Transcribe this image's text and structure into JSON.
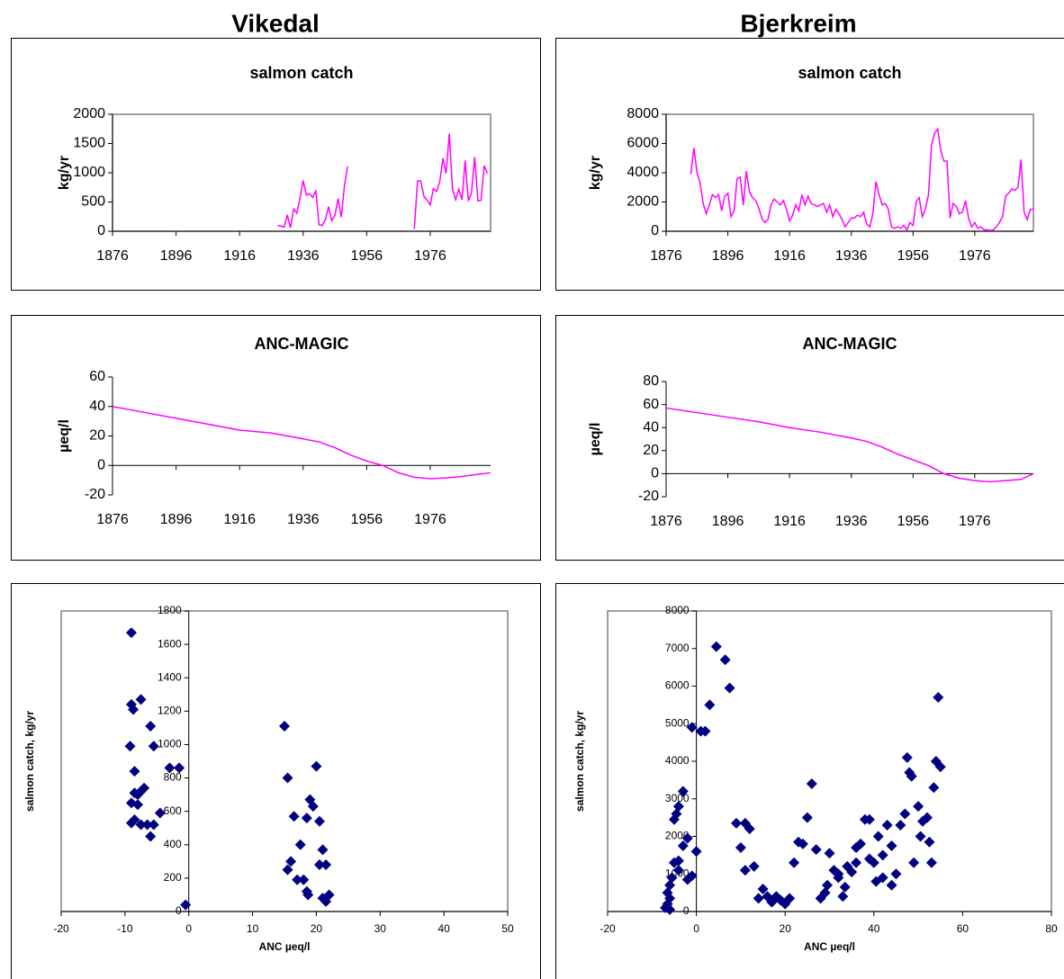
{
  "headers": [
    "Vikedal",
    "Bjerkreim"
  ],
  "chart_data": [
    {
      "type": "line",
      "title": "salmon catch",
      "ylabel": "kg/yr",
      "color": "#ff00ff",
      "x": [
        1928,
        1929,
        1930,
        1931,
        1932,
        1933,
        1934,
        1935,
        1936,
        1937,
        1938,
        1939,
        1940,
        1941,
        1942,
        1943,
        1944,
        1945,
        1946,
        1947,
        1948,
        1949,
        1950,
        1951,
        1952,
        1953,
        1954,
        1955,
        1956,
        1957,
        1958,
        1959,
        1960,
        1961,
        1962,
        1963,
        1964,
        1965,
        1966,
        1967,
        1968,
        1969,
        1970,
        1971,
        1972,
        1973,
        1974,
        1975,
        1976,
        1977,
        1978,
        1979,
        1980,
        1981,
        1982,
        1983,
        1984,
        1985,
        1986,
        1987,
        1988,
        1989,
        1990,
        1991,
        1992,
        1993,
        1994
      ],
      "values": [
        100,
        90,
        70,
        280,
        60,
        380,
        310,
        560,
        870,
        620,
        640,
        580,
        690,
        110,
        100,
        200,
        420,
        180,
        270,
        560,
        240,
        780,
        1110,
        null,
        null,
        null,
        null,
        null,
        null,
        null,
        null,
        null,
        null,
        null,
        null,
        null,
        null,
        null,
        null,
        null,
        null,
        null,
        null,
        40,
        860,
        860,
        600,
        530,
        450,
        730,
        680,
        850,
        1250,
        990,
        1670,
        720,
        540,
        720,
        540,
        1210,
        520,
        660,
        1270,
        520,
        530,
        1120,
        990
      ],
      "xlim": [
        1876,
        1995
      ],
      "xticks": [
        1876,
        1896,
        1916,
        1936,
        1956,
        1976
      ],
      "ylim": [
        0,
        2000
      ],
      "yticks": [
        0,
        500,
        1000,
        1500,
        2000
      ]
    },
    {
      "type": "line",
      "title": "salmon catch",
      "ylabel": "kg/yr",
      "color": "#ff00ff",
      "x": [
        1884,
        1885,
        1886,
        1887,
        1888,
        1889,
        1890,
        1891,
        1892,
        1893,
        1894,
        1895,
        1896,
        1897,
        1898,
        1899,
        1900,
        1901,
        1902,
        1903,
        1904,
        1905,
        1906,
        1907,
        1908,
        1909,
        1910,
        1911,
        1912,
        1913,
        1914,
        1915,
        1916,
        1917,
        1918,
        1919,
        1920,
        1921,
        1922,
        1923,
        1924,
        1925,
        1926,
        1927,
        1928,
        1929,
        1930,
        1931,
        1932,
        1933,
        1934,
        1935,
        1936,
        1937,
        1938,
        1939,
        1940,
        1941,
        1942,
        1943,
        1944,
        1945,
        1946,
        1947,
        1948,
        1949,
        1950,
        1951,
        1952,
        1953,
        1954,
        1955,
        1956,
        1957,
        1958,
        1959,
        1960,
        1961,
        1962,
        1963,
        1964,
        1965,
        1966,
        1967,
        1968,
        1969,
        1970,
        1971,
        1972,
        1973,
        1974,
        1975,
        1976,
        1977,
        1978,
        1979,
        1980,
        1981,
        1982,
        1983,
        1984,
        1985,
        1986,
        1987,
        1988,
        1989,
        1990,
        1991,
        1992,
        1993,
        1994,
        1995
      ],
      "values": [
        3900,
        5700,
        4000,
        3300,
        1900,
        1200,
        1800,
        2500,
        2300,
        2500,
        1400,
        2400,
        2600,
        1000,
        1400,
        3600,
        3700,
        1800,
        4100,
        2700,
        2300,
        2100,
        1600,
        900,
        600,
        800,
        1800,
        2200,
        2000,
        1800,
        2100,
        1500,
        700,
        1100,
        1800,
        1400,
        2500,
        1800,
        2400,
        1900,
        1800,
        1700,
        1800,
        1900,
        1300,
        1800,
        1000,
        1500,
        1200,
        800,
        300,
        600,
        900,
        900,
        1100,
        1000,
        1300,
        500,
        300,
        1200,
        3400,
        2500,
        1800,
        1900,
        1500,
        300,
        200,
        300,
        200,
        400,
        100,
        600,
        400,
        2000,
        2300,
        1000,
        1500,
        2500,
        5900,
        6700,
        7000,
        5500,
        4800,
        4800,
        900,
        1900,
        1700,
        1200,
        1300,
        2100,
        900,
        300,
        600,
        200,
        300,
        100,
        100,
        50,
        100,
        300,
        600,
        1000,
        2400,
        2600,
        2900,
        2800,
        3000,
        4900,
        1300,
        800,
        1500,
        1500
      ],
      "xlim": [
        1876,
        1995
      ],
      "xticks": [
        1876,
        1896,
        1916,
        1936,
        1956,
        1976
      ],
      "ylim": [
        0,
        8000
      ],
      "yticks": [
        0,
        2000,
        4000,
        6000,
        8000
      ]
    },
    {
      "type": "line",
      "title": "ANC-MAGIC",
      "ylabel": "µeq/l",
      "color": "#ff00ff",
      "x": [
        1876,
        1886,
        1896,
        1906,
        1916,
        1926,
        1936,
        1941,
        1946,
        1951,
        1956,
        1961,
        1966,
        1971,
        1976,
        1981,
        1986,
        1991,
        1995
      ],
      "values": [
        40,
        36,
        32,
        28,
        24,
        22,
        18,
        16,
        12,
        7,
        3,
        0,
        -5,
        -8,
        -9,
        -8.5,
        -7.5,
        -6,
        -5
      ],
      "xlim": [
        1876,
        1995
      ],
      "xticks": [
        1876,
        1896,
        1916,
        1936,
        1956,
        1976
      ],
      "ylim": [
        -20,
        60
      ],
      "yticks": [
        -20,
        0,
        20,
        40,
        60
      ]
    },
    {
      "type": "line",
      "title": "ANC-MAGIC",
      "ylabel": "µeq/l",
      "color": "#ff00ff",
      "x": [
        1876,
        1886,
        1896,
        1906,
        1916,
        1926,
        1936,
        1941,
        1946,
        1951,
        1956,
        1961,
        1966,
        1971,
        1976,
        1981,
        1986,
        1991,
        1995
      ],
      "values": [
        57,
        53,
        49,
        45,
        40,
        36,
        31,
        28,
        23,
        17,
        12,
        7,
        0,
        -4,
        -6,
        -7,
        -6,
        -5,
        0
      ],
      "xlim": [
        1876,
        1995
      ],
      "xticks": [
        1876,
        1896,
        1916,
        1936,
        1956,
        1976
      ],
      "ylim": [
        -20,
        80
      ],
      "yticks": [
        -20,
        0,
        20,
        40,
        60,
        80
      ]
    },
    {
      "type": "scatter",
      "xlabel": "ANC µeq/l",
      "ylabel": "salmon catch, kg/yr",
      "color": "#000080",
      "x": [
        -9,
        -9,
        -8.7,
        -7.5,
        -9.2,
        -8.5,
        -6,
        -5.5,
        -3,
        -1.5,
        -8.5,
        -8,
        -7.5,
        -7,
        -9,
        -8,
        -9,
        -8.5,
        -7.5,
        -6.5,
        -5.5,
        -6,
        -4.5,
        -0.5,
        15,
        15.5,
        20,
        16.5,
        19,
        19.5,
        20.5,
        18.5,
        16,
        15.5,
        17.5,
        17,
        18,
        18.5,
        18.7,
        21,
        21.5,
        20.5,
        22,
        21.5,
        21
      ],
      "y": [
        1670,
        1240,
        1210,
        1270,
        990,
        840,
        1110,
        990,
        860,
        860,
        710,
        700,
        720,
        740,
        650,
        640,
        530,
        550,
        520,
        520,
        520,
        450,
        590,
        40,
        1110,
        800,
        870,
        570,
        670,
        630,
        540,
        560,
        300,
        250,
        400,
        190,
        190,
        120,
        100,
        370,
        280,
        280,
        100,
        60,
        80
      ],
      "xlim": [
        -20,
        50
      ],
      "xticks": [
        -20,
        -10,
        0,
        10,
        20,
        30,
        40,
        50
      ],
      "ylim": [
        0,
        1800
      ],
      "yticks": [
        0,
        200,
        400,
        600,
        800,
        1000,
        1200,
        1400,
        1600,
        1800
      ]
    },
    {
      "type": "scatter",
      "xlabel": "ANC µeq/l",
      "ylabel": "salmon catch, kg/yr",
      "color": "#000080",
      "x": [
        4.5,
        6.5,
        7.5,
        3,
        -1,
        1,
        2,
        -3,
        -4,
        -5,
        -4.5,
        -2,
        0,
        -3,
        -4,
        -5,
        -4,
        -5.5,
        -6,
        -6.5,
        -6,
        -6.5,
        -7,
        -6,
        -2,
        -1,
        9,
        11,
        12,
        10,
        11,
        13,
        14,
        15,
        16,
        17,
        18,
        19,
        20,
        21,
        22,
        23,
        24,
        25,
        26,
        27,
        28,
        29,
        29.5,
        30,
        31,
        32,
        33,
        33.5,
        34,
        35,
        36,
        37,
        38,
        39,
        40,
        40.5,
        41,
        42,
        43,
        44,
        45,
        46,
        47,
        47.5,
        48,
        48.5,
        49,
        50,
        50.5,
        51,
        52,
        52.5,
        53,
        53.5,
        54,
        54.5,
        55,
        44,
        39,
        36,
        32,
        42
      ],
      "y": [
        7050,
        6700,
        5950,
        5500,
        4900,
        4800,
        4800,
        3200,
        2800,
        2450,
        2600,
        1950,
        1600,
        1750,
        1350,
        1300,
        1100,
        900,
        700,
        500,
        350,
        200,
        100,
        50,
        850,
        950,
        2350,
        2350,
        2200,
        1700,
        1100,
        1200,
        350,
        600,
        400,
        250,
        400,
        300,
        200,
        350,
        1300,
        1850,
        1800,
        2500,
        3400,
        1650,
        350,
        500,
        700,
        1550,
        1100,
        900,
        400,
        650,
        1200,
        1050,
        1700,
        1800,
        2450,
        1400,
        1300,
        800,
        2000,
        1500,
        2300,
        700,
        1000,
        2300,
        2600,
        4100,
        3700,
        3600,
        1300,
        2800,
        2000,
        2400,
        2500,
        1850,
        1300,
        3300,
        4000,
        5700,
        3850,
        1750,
        2450,
        1300,
        1000,
        900
      ],
      "xlim": [
        -20,
        80
      ],
      "xticks": [
        -20,
        0,
        20,
        40,
        60,
        80
      ],
      "ylim": [
        0,
        8000
      ],
      "yticks": [
        0,
        1000,
        2000,
        3000,
        4000,
        5000,
        6000,
        7000,
        8000
      ]
    }
  ]
}
